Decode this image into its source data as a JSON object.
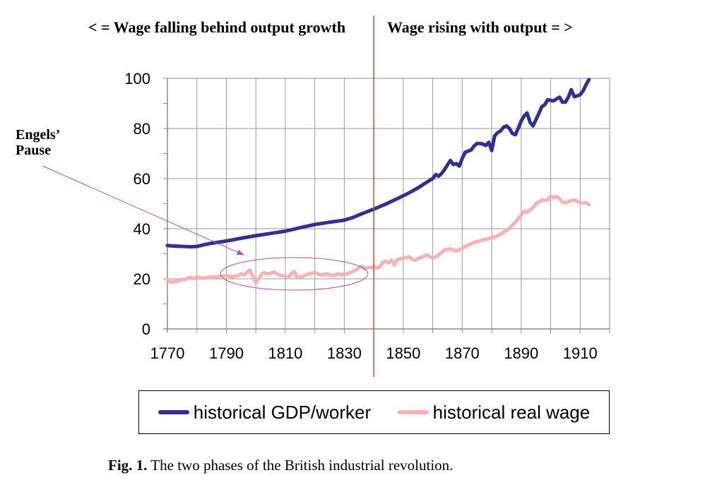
{
  "chart_data": {
    "type": "line",
    "x_ticks": [
      1770,
      1790,
      1810,
      1830,
      1850,
      1870,
      1890,
      1910
    ],
    "y_ticks": [
      0,
      20,
      40,
      60,
      80,
      100
    ],
    "xlim": [
      1770,
      1920
    ],
    "ylim": [
      0,
      100
    ],
    "grid": true,
    "legend_position": "bottom",
    "phase_divider_year": 1840,
    "phase_titles": [
      "< = Wage falling behind output growth",
      "Wage rising with output = >"
    ],
    "annotation": {
      "text": "Engels’\nPause",
      "ellipse_center": [
        1813,
        22
      ],
      "ellipse_radii": [
        25,
        6.5
      ],
      "arrow_target": [
        1796,
        29.5
      ]
    },
    "series": [
      {
        "name": "historical GDP/worker",
        "color": "#2e3192",
        "points": [
          [
            1770,
            33.3
          ],
          [
            1772,
            33.1
          ],
          [
            1774,
            33
          ],
          [
            1776,
            32.9
          ],
          [
            1778,
            32.8
          ],
          [
            1780,
            32.9
          ],
          [
            1782,
            33.5
          ],
          [
            1785,
            34.2
          ],
          [
            1790,
            35.1
          ],
          [
            1795,
            36.2
          ],
          [
            1800,
            37.2
          ],
          [
            1805,
            38.1
          ],
          [
            1810,
            39
          ],
          [
            1815,
            40.4
          ],
          [
            1820,
            41.7
          ],
          [
            1825,
            42.6
          ],
          [
            1830,
            43.4
          ],
          [
            1833,
            44.5
          ],
          [
            1836,
            46
          ],
          [
            1840,
            47.8
          ],
          [
            1844,
            49.8
          ],
          [
            1848,
            52
          ],
          [
            1852,
            54.3
          ],
          [
            1855,
            56.3
          ],
          [
            1858,
            58.6
          ],
          [
            1860,
            60
          ],
          [
            1861,
            61.6
          ],
          [
            1862,
            61
          ],
          [
            1863,
            62
          ],
          [
            1864,
            63.6
          ],
          [
            1865,
            65.5
          ],
          [
            1866,
            67.2
          ],
          [
            1867,
            65.6
          ],
          [
            1868,
            66
          ],
          [
            1869,
            65
          ],
          [
            1870,
            68
          ],
          [
            1871,
            70.5
          ],
          [
            1872,
            71
          ],
          [
            1873,
            71.4
          ],
          [
            1874,
            73
          ],
          [
            1875,
            74
          ],
          [
            1876,
            74
          ],
          [
            1877,
            73.8
          ],
          [
            1878,
            73.2
          ],
          [
            1879,
            74.5
          ],
          [
            1880,
            71.2
          ],
          [
            1881,
            77
          ],
          [
            1882,
            78.3
          ],
          [
            1883,
            79
          ],
          [
            1884,
            80.5
          ],
          [
            1885,
            81
          ],
          [
            1886,
            80
          ],
          [
            1887,
            78
          ],
          [
            1888,
            77.5
          ],
          [
            1889,
            80
          ],
          [
            1890,
            83
          ],
          [
            1891,
            85
          ],
          [
            1892,
            86.2
          ],
          [
            1893,
            82.5
          ],
          [
            1894,
            81
          ],
          [
            1895,
            83.5
          ],
          [
            1896,
            86
          ],
          [
            1897,
            88.7
          ],
          [
            1898,
            89.5
          ],
          [
            1899,
            91.5
          ],
          [
            1900,
            91.2
          ],
          [
            1901,
            91
          ],
          [
            1902,
            91.8
          ],
          [
            1903,
            92.5
          ],
          [
            1904,
            90.5
          ],
          [
            1905,
            90.5
          ],
          [
            1906,
            92.5
          ],
          [
            1907,
            95.5
          ],
          [
            1908,
            92.7
          ],
          [
            1909,
            93
          ],
          [
            1910,
            93.5
          ],
          [
            1911,
            95
          ],
          [
            1912,
            97.5
          ],
          [
            1913,
            99.5
          ]
        ]
      },
      {
        "name": "historical real wage",
        "color": "#f7b3b3",
        "points": [
          [
            1770,
            19.5
          ],
          [
            1771,
            18.8
          ],
          [
            1772,
            18.8
          ],
          [
            1773,
            19
          ],
          [
            1774,
            19.2
          ],
          [
            1775,
            19.8
          ],
          [
            1776,
            19.6
          ],
          [
            1777,
            20.3
          ],
          [
            1778,
            20.5
          ],
          [
            1779,
            20
          ],
          [
            1780,
            20.8
          ],
          [
            1782,
            20.2
          ],
          [
            1784,
            20.6
          ],
          [
            1786,
            20.8
          ],
          [
            1788,
            21
          ],
          [
            1790,
            21.3
          ],
          [
            1792,
            20.8
          ],
          [
            1794,
            21.3
          ],
          [
            1795,
            22
          ],
          [
            1796,
            21.5
          ],
          [
            1797,
            22.5
          ],
          [
            1798,
            23.5
          ],
          [
            1799,
            21
          ],
          [
            1800,
            18.5
          ],
          [
            1801,
            20
          ],
          [
            1802,
            22
          ],
          [
            1803,
            22.5
          ],
          [
            1804,
            21.8
          ],
          [
            1806,
            22.7
          ],
          [
            1808,
            21.5
          ],
          [
            1810,
            21
          ],
          [
            1811,
            20.5
          ],
          [
            1812,
            22
          ],
          [
            1813,
            23
          ],
          [
            1814,
            20.5
          ],
          [
            1815,
            20.8
          ],
          [
            1816,
            21
          ],
          [
            1817,
            21.6
          ],
          [
            1818,
            22
          ],
          [
            1820,
            22.5
          ],
          [
            1822,
            21.5
          ],
          [
            1824,
            22
          ],
          [
            1826,
            21.3
          ],
          [
            1828,
            22
          ],
          [
            1830,
            21.5
          ],
          [
            1832,
            22.5
          ],
          [
            1834,
            23.5
          ],
          [
            1835,
            24.5
          ],
          [
            1836,
            25
          ],
          [
            1837,
            24
          ],
          [
            1838,
            24.5
          ],
          [
            1839,
            24.5
          ],
          [
            1840,
            25
          ],
          [
            1841,
            24.3
          ],
          [
            1842,
            24.8
          ],
          [
            1843,
            26.5
          ],
          [
            1844,
            27
          ],
          [
            1845,
            26.3
          ],
          [
            1846,
            27.5
          ],
          [
            1847,
            25.5
          ],
          [
            1848,
            27.8
          ],
          [
            1850,
            28.2
          ],
          [
            1852,
            28.8
          ],
          [
            1853,
            27.8
          ],
          [
            1854,
            27.5
          ],
          [
            1856,
            28.5
          ],
          [
            1858,
            29.5
          ],
          [
            1860,
            28.2
          ],
          [
            1862,
            29.5
          ],
          [
            1864,
            31.5
          ],
          [
            1866,
            32
          ],
          [
            1868,
            31
          ],
          [
            1870,
            32.2
          ],
          [
            1872,
            33.5
          ],
          [
            1874,
            34.5
          ],
          [
            1876,
            35.2
          ],
          [
            1878,
            35.8
          ],
          [
            1880,
            36.3
          ],
          [
            1882,
            37.2
          ],
          [
            1884,
            38.5
          ],
          [
            1886,
            40.2
          ],
          [
            1888,
            42.5
          ],
          [
            1890,
            45.5
          ],
          [
            1891,
            47
          ],
          [
            1892,
            46.5
          ],
          [
            1893,
            47.5
          ],
          [
            1894,
            48.3
          ],
          [
            1895,
            50
          ],
          [
            1896,
            50.7
          ],
          [
            1897,
            51.5
          ],
          [
            1898,
            51.4
          ],
          [
            1899,
            51.5
          ],
          [
            1900,
            53
          ],
          [
            1901,
            52.5
          ],
          [
            1902,
            52.8
          ],
          [
            1903,
            52
          ],
          [
            1904,
            50.5
          ],
          [
            1905,
            50.3
          ],
          [
            1906,
            50.8
          ],
          [
            1907,
            51.2
          ],
          [
            1908,
            51.5
          ],
          [
            1909,
            51
          ],
          [
            1910,
            50.5
          ],
          [
            1911,
            50.2
          ],
          [
            1912,
            50.3
          ],
          [
            1913,
            49.7
          ]
        ]
      }
    ]
  },
  "caption": {
    "label": "Fig. 1.",
    "text": "The two phases of the British industrial revolution."
  }
}
